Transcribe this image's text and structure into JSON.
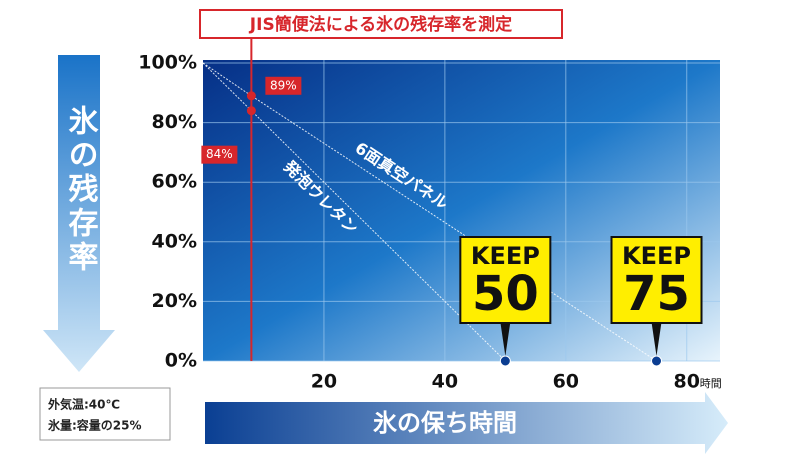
{
  "chart_data": {
    "type": "line",
    "title": "JIS簡便法による氷の残存率を測定",
    "y_label": "氷の残存率",
    "x_label": "氷の保ち時間",
    "x_unit": "時間",
    "notes": [
      "外気温:40℃",
      "氷量:容量の25%"
    ],
    "xlim": [
      0,
      85.5
    ],
    "ylim": [
      0,
      100
    ],
    "xticks": [
      20,
      40,
      60,
      80
    ],
    "yticks": [
      {
        "value": 0,
        "label": "0%"
      },
      {
        "value": 20,
        "label": "20%"
      },
      {
        "value": 40,
        "label": "40%"
      },
      {
        "value": 60,
        "label": "60%"
      },
      {
        "value": 80,
        "label": "80%"
      },
      {
        "value": 100,
        "label": "100%"
      }
    ],
    "grid": true,
    "series": [
      {
        "name": "6面真空パネル",
        "color": "#ffffff",
        "x": [
          0,
          8,
          75
        ],
        "values": [
          100,
          89,
          0
        ],
        "value_labels": [
          null,
          "89%",
          null
        ],
        "callout": [
          "KEEP",
          "75"
        ]
      },
      {
        "name": "発泡ウレタン",
        "color": "#ffffff",
        "x": [
          0,
          8,
          50
        ],
        "values": [
          100,
          84,
          0
        ],
        "value_labels": [
          null,
          "84%",
          null
        ],
        "callout": [
          "KEEP",
          "50"
        ]
      }
    ]
  }
}
